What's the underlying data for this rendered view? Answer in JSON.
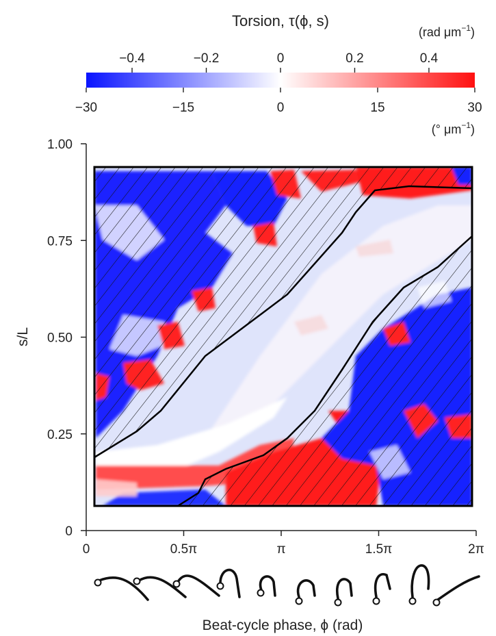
{
  "chart_data": {
    "type": "heatmap",
    "colorbar": {
      "title": "Torsion, τ(ϕ, s)",
      "top_unit": "(rad μm",
      "top_unit_exp": "−1",
      "top_unit_close": ")",
      "top_ticks": [
        "−0.4",
        "−0.2",
        "0",
        "0.2",
        "0.4"
      ],
      "top_tick_values": [
        -0.4,
        -0.2,
        0,
        0.2,
        0.4
      ],
      "bottom_unit": "(° μm",
      "bottom_unit_exp": "−1",
      "bottom_unit_close": ")",
      "bottom_ticks": [
        "−30",
        "−15",
        "0",
        "15",
        "30"
      ],
      "bottom_tick_values": [
        -30,
        -15,
        0,
        15,
        30
      ],
      "range_deg_per_um": [
        -30,
        30
      ],
      "colors": {
        "negative": "#0a14ff",
        "zero": "#ffffff",
        "positive": "#ff1010"
      }
    },
    "xlabel": "Beat-cycle phase, ϕ (rad)",
    "ylabel": "s/L",
    "x_range": [
      0,
      6.2832
    ],
    "y_range": [
      0,
      1
    ],
    "x_ticks": [
      "0",
      "0.5π",
      "π",
      "1.5π",
      "2π"
    ],
    "x_tick_values": [
      0,
      1.5708,
      3.1416,
      4.7124,
      6.2832
    ],
    "y_ticks": [
      "0",
      "0.25",
      "0.50",
      "0.75",
      "1.00"
    ],
    "y_tick_values": [
      0,
      0.25,
      0.5,
      0.75,
      1.0
    ],
    "data_extent": {
      "x": [
        0.12,
        6.28
      ],
      "y": [
        0.065,
        0.935
      ]
    },
    "hatched_region_upper": [
      [
        0.12,
        0.19
      ],
      [
        0.9,
        0.26
      ],
      [
        1.6,
        0.37
      ],
      [
        2.5,
        0.5
      ],
      [
        3.2,
        0.62
      ],
      [
        3.95,
        0.76
      ],
      [
        4.3,
        0.84
      ],
      [
        4.7,
        0.89
      ],
      [
        5.1,
        0.9
      ],
      [
        6.28,
        0.885
      ]
    ],
    "hatched_region_lower": [
      [
        1.5,
        0.065
      ],
      [
        1.85,
        0.13
      ],
      [
        2.5,
        0.19
      ],
      [
        3.1,
        0.27
      ],
      [
        3.7,
        0.39
      ],
      [
        4.2,
        0.5
      ],
      [
        4.9,
        0.63
      ],
      [
        5.6,
        0.7
      ],
      [
        6.28,
        0.755
      ]
    ],
    "description_of_pattern": "Torsion bands propagate diagonally with phase; hatched regions mark the principal and reverse bends",
    "beat_waveform_icons": 10
  }
}
